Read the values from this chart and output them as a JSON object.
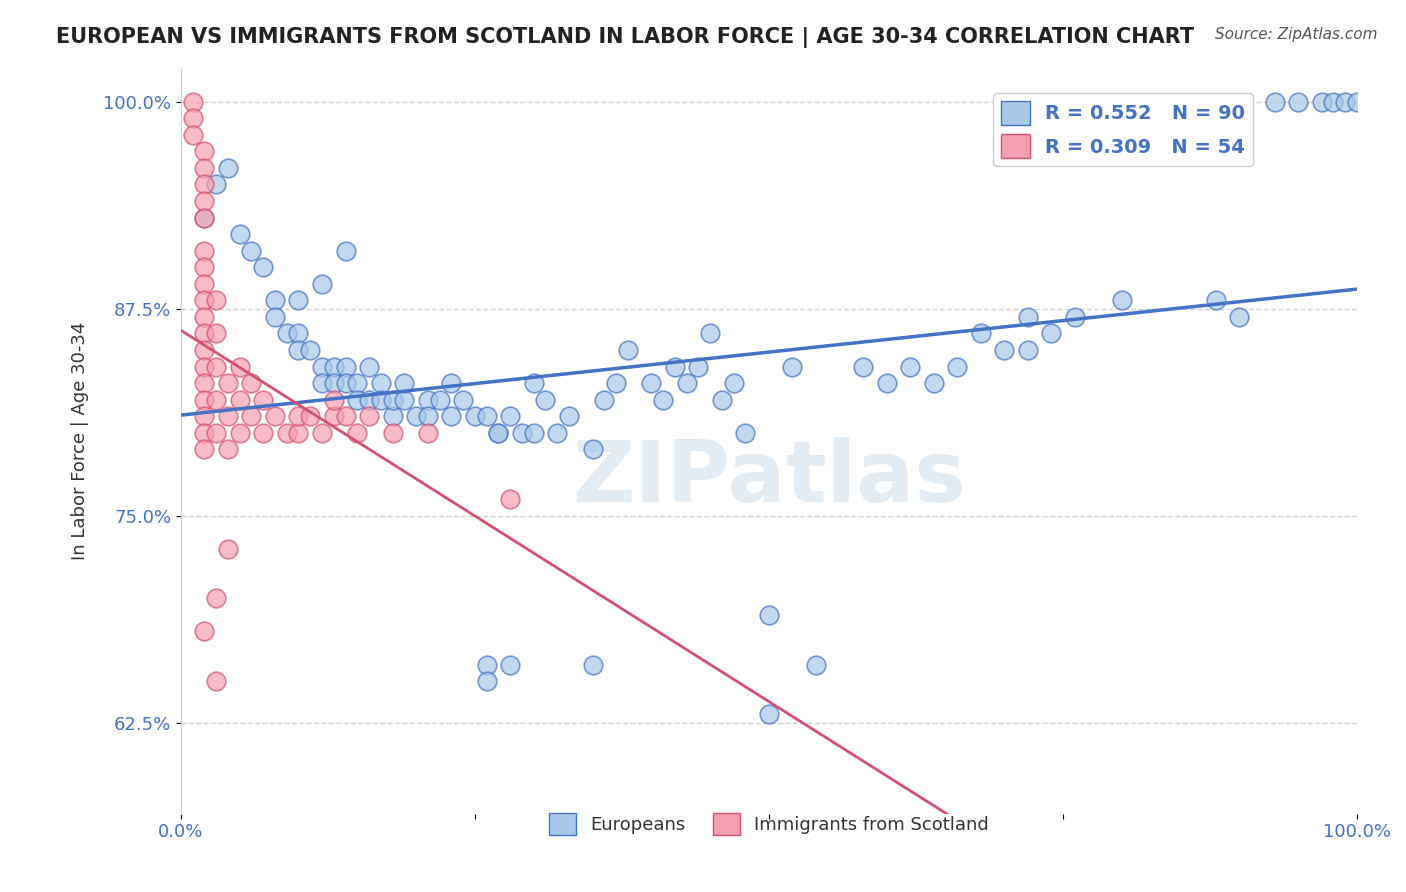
{
  "title": "EUROPEAN VS IMMIGRANTS FROM SCOTLAND IN LABOR FORCE | AGE 30-34 CORRELATION CHART",
  "source": "Source: ZipAtlas.com",
  "ylabel": "In Labor Force | Age 30-34",
  "xlabel": "",
  "xlim": [
    0.0,
    1.0
  ],
  "ylim": [
    0.57,
    1.02
  ],
  "yticks": [
    0.625,
    0.75,
    0.875,
    1.0
  ],
  "ytick_labels": [
    "62.5%",
    "75.0%",
    "87.5%",
    "100.0%"
  ],
  "xticks": [
    0.0,
    0.25,
    0.5,
    0.75,
    1.0
  ],
  "xtick_labels": [
    "0.0%",
    "",
    "",
    "",
    "100.0%"
  ],
  "blue_color": "#a8c8e8",
  "pink_color": "#f4a0b0",
  "blue_line_color": "#4472c4",
  "pink_line_color": "#d45070",
  "R_blue": 0.552,
  "N_blue": 90,
  "R_pink": 0.309,
  "N_pink": 54,
  "blue_points": [
    [
      0.02,
      0.93
    ],
    [
      0.03,
      0.95
    ],
    [
      0.04,
      0.96
    ],
    [
      0.05,
      0.92
    ],
    [
      0.06,
      0.91
    ],
    [
      0.07,
      0.9
    ],
    [
      0.08,
      0.88
    ],
    [
      0.08,
      0.87
    ],
    [
      0.09,
      0.86
    ],
    [
      0.1,
      0.86
    ],
    [
      0.1,
      0.85
    ],
    [
      0.11,
      0.85
    ],
    [
      0.12,
      0.84
    ],
    [
      0.12,
      0.83
    ],
    [
      0.13,
      0.84
    ],
    [
      0.13,
      0.83
    ],
    [
      0.14,
      0.84
    ],
    [
      0.14,
      0.83
    ],
    [
      0.15,
      0.83
    ],
    [
      0.15,
      0.82
    ],
    [
      0.16,
      0.82
    ],
    [
      0.16,
      0.84
    ],
    [
      0.17,
      0.83
    ],
    [
      0.17,
      0.82
    ],
    [
      0.18,
      0.81
    ],
    [
      0.18,
      0.82
    ],
    [
      0.19,
      0.82
    ],
    [
      0.19,
      0.83
    ],
    [
      0.2,
      0.81
    ],
    [
      0.21,
      0.82
    ],
    [
      0.21,
      0.81
    ],
    [
      0.22,
      0.82
    ],
    [
      0.23,
      0.81
    ],
    [
      0.23,
      0.83
    ],
    [
      0.24,
      0.82
    ],
    [
      0.25,
      0.81
    ],
    [
      0.26,
      0.81
    ],
    [
      0.27,
      0.8
    ],
    [
      0.27,
      0.8
    ],
    [
      0.28,
      0.81
    ],
    [
      0.29,
      0.8
    ],
    [
      0.3,
      0.83
    ],
    [
      0.3,
      0.8
    ],
    [
      0.31,
      0.82
    ],
    [
      0.32,
      0.8
    ],
    [
      0.33,
      0.81
    ],
    [
      0.35,
      0.79
    ],
    [
      0.36,
      0.82
    ],
    [
      0.37,
      0.83
    ],
    [
      0.38,
      0.85
    ],
    [
      0.4,
      0.83
    ],
    [
      0.41,
      0.82
    ],
    [
      0.42,
      0.84
    ],
    [
      0.43,
      0.83
    ],
    [
      0.44,
      0.84
    ],
    [
      0.45,
      0.86
    ],
    [
      0.46,
      0.82
    ],
    [
      0.47,
      0.83
    ],
    [
      0.48,
      0.8
    ],
    [
      0.5,
      0.69
    ],
    [
      0.5,
      0.63
    ],
    [
      0.52,
      0.84
    ],
    [
      0.54,
      0.66
    ],
    [
      0.58,
      0.84
    ],
    [
      0.6,
      0.83
    ],
    [
      0.62,
      0.84
    ],
    [
      0.64,
      0.83
    ],
    [
      0.66,
      0.84
    ],
    [
      0.68,
      0.86
    ],
    [
      0.7,
      0.85
    ],
    [
      0.72,
      0.85
    ],
    [
      0.74,
      0.86
    ],
    [
      0.76,
      0.87
    ],
    [
      0.8,
      0.88
    ],
    [
      0.88,
      0.88
    ],
    [
      0.9,
      0.87
    ],
    [
      0.93,
      1.0
    ],
    [
      0.95,
      1.0
    ],
    [
      0.97,
      1.0
    ],
    [
      0.98,
      1.0
    ],
    [
      0.99,
      1.0
    ],
    [
      1.0,
      1.0
    ],
    [
      0.72,
      0.87
    ],
    [
      0.35,
      0.66
    ],
    [
      0.26,
      0.66
    ],
    [
      0.26,
      0.65
    ],
    [
      0.28,
      0.66
    ],
    [
      0.1,
      0.88
    ],
    [
      0.12,
      0.89
    ],
    [
      0.14,
      0.91
    ]
  ],
  "pink_points": [
    [
      0.01,
      1.0
    ],
    [
      0.01,
      0.99
    ],
    [
      0.01,
      0.98
    ],
    [
      0.02,
      0.97
    ],
    [
      0.02,
      0.96
    ],
    [
      0.02,
      0.95
    ],
    [
      0.02,
      0.94
    ],
    [
      0.02,
      0.93
    ],
    [
      0.02,
      0.91
    ],
    [
      0.02,
      0.9
    ],
    [
      0.02,
      0.89
    ],
    [
      0.02,
      0.88
    ],
    [
      0.02,
      0.87
    ],
    [
      0.02,
      0.86
    ],
    [
      0.02,
      0.85
    ],
    [
      0.02,
      0.84
    ],
    [
      0.02,
      0.83
    ],
    [
      0.02,
      0.82
    ],
    [
      0.02,
      0.81
    ],
    [
      0.02,
      0.8
    ],
    [
      0.02,
      0.79
    ],
    [
      0.03,
      0.88
    ],
    [
      0.03,
      0.86
    ],
    [
      0.03,
      0.84
    ],
    [
      0.03,
      0.82
    ],
    [
      0.03,
      0.8
    ],
    [
      0.04,
      0.83
    ],
    [
      0.04,
      0.81
    ],
    [
      0.04,
      0.79
    ],
    [
      0.05,
      0.84
    ],
    [
      0.05,
      0.82
    ],
    [
      0.05,
      0.8
    ],
    [
      0.06,
      0.83
    ],
    [
      0.06,
      0.81
    ],
    [
      0.07,
      0.82
    ],
    [
      0.07,
      0.8
    ],
    [
      0.08,
      0.81
    ],
    [
      0.09,
      0.8
    ],
    [
      0.1,
      0.8
    ],
    [
      0.1,
      0.81
    ],
    [
      0.11,
      0.81
    ],
    [
      0.12,
      0.8
    ],
    [
      0.13,
      0.81
    ],
    [
      0.13,
      0.82
    ],
    [
      0.14,
      0.81
    ],
    [
      0.15,
      0.8
    ],
    [
      0.16,
      0.81
    ],
    [
      0.18,
      0.8
    ],
    [
      0.21,
      0.8
    ],
    [
      0.28,
      0.76
    ],
    [
      0.03,
      0.7
    ],
    [
      0.04,
      0.73
    ],
    [
      0.02,
      0.68
    ],
    [
      0.03,
      0.65
    ]
  ],
  "watermark_text": "ZIPatlas",
  "watermark_color": "#c8d8e8",
  "background_color": "#ffffff",
  "grid_color": "#d0d0d0"
}
